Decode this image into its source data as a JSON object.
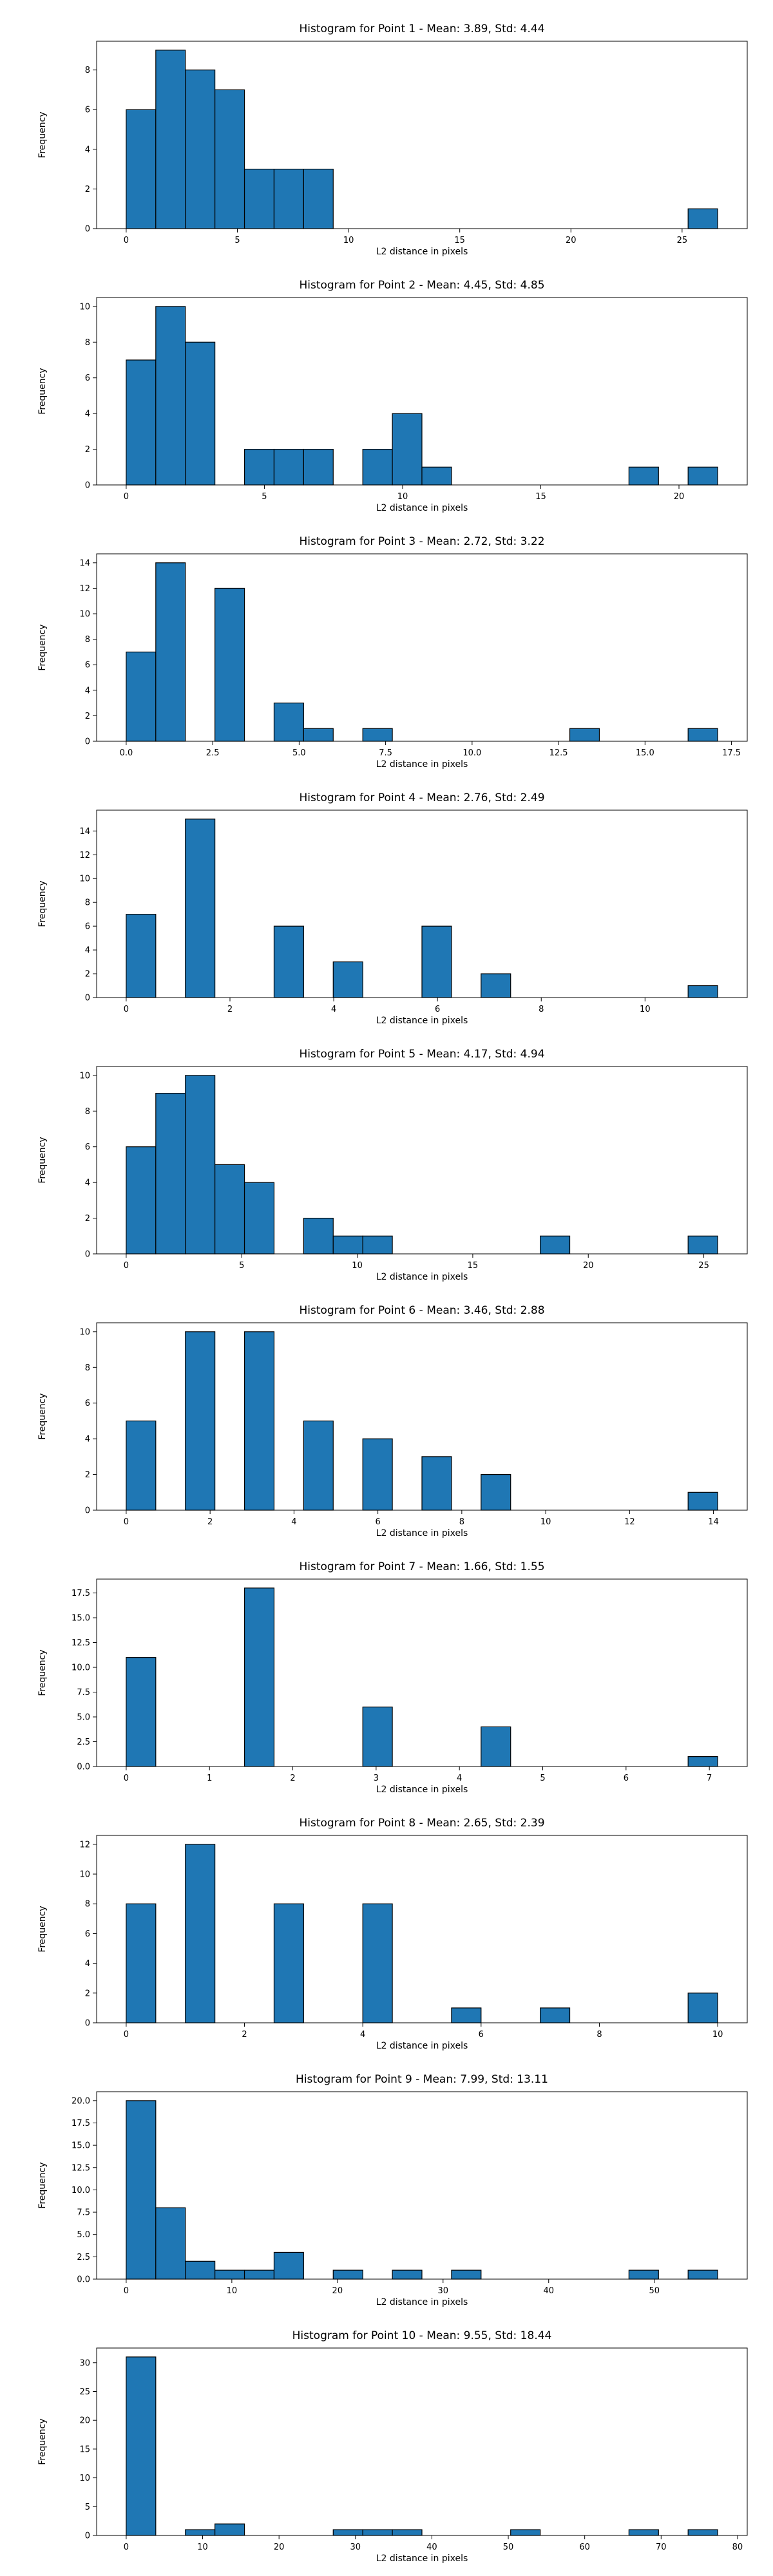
{
  "style": {
    "bar_color": "#1f77b4",
    "bar_edge_color": "#000000",
    "background": "#ffffff"
  },
  "chart_data": [
    {
      "type": "bar",
      "title": "Histogram for Point 1 - Mean: 3.89, Std: 4.44",
      "xlabel": "L2 distance in pixels",
      "ylabel": "Frequency",
      "bin_edges": [
        0.0,
        1.33,
        2.66,
        3.99,
        5.32,
        6.65,
        7.98,
        9.31,
        10.64,
        11.97,
        13.3,
        14.63,
        15.96,
        17.29,
        18.62,
        19.95,
        21.28,
        22.61,
        23.94,
        25.27,
        26.6
      ],
      "values": [
        6,
        9,
        8,
        7,
        3,
        3,
        3,
        0,
        0,
        0,
        0,
        0,
        0,
        0,
        0,
        0,
        0,
        0,
        0,
        1
      ],
      "xlim": [
        -1.33,
        27.93
      ],
      "ylim": [
        0,
        9.45
      ],
      "xticks": [
        0,
        5,
        10,
        15,
        20,
        25
      ],
      "xtick_labels": [
        "0",
        "5",
        "10",
        "15",
        "20",
        "25"
      ],
      "yticks": [
        0,
        2,
        4,
        6,
        8
      ],
      "ytick_labels": [
        "0",
        "2",
        "4",
        "6",
        "8"
      ],
      "grid": false
    },
    {
      "type": "bar",
      "title": "Histogram for Point 2 - Mean: 4.45, Std: 4.85",
      "xlabel": "L2 distance in pixels",
      "ylabel": "Frequency",
      "bin_edges": [
        0.0,
        1.07,
        2.14,
        3.21,
        4.28,
        5.35,
        6.42,
        7.49,
        8.56,
        9.63,
        10.7,
        11.77,
        12.84,
        13.91,
        14.98,
        16.05,
        17.12,
        18.19,
        19.26,
        20.33,
        21.4
      ],
      "values": [
        7,
        10,
        8,
        0,
        2,
        2,
        2,
        0,
        2,
        4,
        1,
        0,
        0,
        0,
        0,
        0,
        0,
        1,
        0,
        1
      ],
      "xlim": [
        -1.07,
        22.47
      ],
      "ylim": [
        0,
        10.5
      ],
      "xticks": [
        0,
        5,
        10,
        15,
        20
      ],
      "xtick_labels": [
        "0",
        "5",
        "10",
        "15",
        "20"
      ],
      "yticks": [
        0,
        2,
        4,
        6,
        8,
        10
      ],
      "ytick_labels": [
        "0",
        "2",
        "4",
        "6",
        "8",
        "10"
      ],
      "grid": false
    },
    {
      "type": "bar",
      "title": "Histogram for Point 3 - Mean: 2.72, Std: 3.22",
      "xlabel": "L2 distance in pixels",
      "ylabel": "Frequency",
      "bin_edges": [
        0.0,
        0.855,
        1.71,
        2.565,
        3.42,
        4.275,
        5.13,
        5.985,
        6.84,
        7.695,
        8.55,
        9.405,
        10.26,
        11.115,
        11.97,
        12.825,
        13.68,
        14.535,
        15.39,
        16.245,
        17.1
      ],
      "values": [
        7,
        14,
        0,
        12,
        0,
        3,
        1,
        0,
        1,
        0,
        0,
        0,
        0,
        0,
        0,
        1,
        0,
        0,
        0,
        1
      ],
      "xlim": [
        -0.855,
        17.955
      ],
      "ylim": [
        0,
        14.7
      ],
      "xticks": [
        0.0,
        2.5,
        5.0,
        7.5,
        10.0,
        12.5,
        15.0,
        17.5
      ],
      "xtick_labels": [
        "0.0",
        "2.5",
        "5.0",
        "7.5",
        "10.0",
        "12.5",
        "15.0",
        "17.5"
      ],
      "yticks": [
        0,
        2,
        4,
        6,
        8,
        10,
        12,
        14
      ],
      "ytick_labels": [
        "0",
        "2",
        "4",
        "6",
        "8",
        "10",
        "12",
        "14"
      ],
      "grid": false
    },
    {
      "type": "bar",
      "title": "Histogram for Point 4 - Mean: 2.76, Std: 2.49",
      "xlabel": "L2 distance in pixels",
      "ylabel": "Frequency",
      "bin_edges": [
        0.0,
        0.57,
        1.14,
        1.71,
        2.28,
        2.85,
        3.42,
        3.99,
        4.56,
        5.13,
        5.7,
        6.27,
        6.84,
        7.41,
        7.98,
        8.55,
        9.12,
        9.69,
        10.26,
        10.83,
        11.4
      ],
      "values": [
        7,
        0,
        15,
        0,
        0,
        6,
        0,
        3,
        0,
        0,
        6,
        0,
        2,
        0,
        0,
        0,
        0,
        0,
        0,
        1
      ],
      "xlim": [
        -0.57,
        11.97
      ],
      "ylim": [
        0,
        15.75
      ],
      "xticks": [
        0,
        2,
        4,
        6,
        8,
        10
      ],
      "xtick_labels": [
        "0",
        "2",
        "4",
        "6",
        "8",
        "10"
      ],
      "yticks": [
        0,
        2,
        4,
        6,
        8,
        10,
        12,
        14
      ],
      "ytick_labels": [
        "0",
        "2",
        "4",
        "6",
        "8",
        "10",
        "12",
        "14"
      ],
      "grid": false
    },
    {
      "type": "bar",
      "title": "Histogram for Point 5 - Mean: 4.17, Std: 4.94",
      "xlabel": "L2 distance in pixels",
      "ylabel": "Frequency",
      "bin_edges": [
        0.0,
        1.28,
        2.56,
        3.84,
        5.12,
        6.4,
        7.68,
        8.96,
        10.24,
        11.52,
        12.8,
        14.08,
        15.36,
        16.64,
        17.92,
        19.2,
        20.48,
        21.76,
        23.04,
        24.32,
        25.6
      ],
      "values": [
        6,
        9,
        10,
        5,
        4,
        0,
        2,
        1,
        1,
        0,
        0,
        0,
        0,
        0,
        1,
        0,
        0,
        0,
        0,
        1
      ],
      "xlim": [
        -1.28,
        26.88
      ],
      "ylim": [
        0,
        10.5
      ],
      "xticks": [
        0,
        5,
        10,
        15,
        20,
        25
      ],
      "xtick_labels": [
        "0",
        "5",
        "10",
        "15",
        "20",
        "25"
      ],
      "yticks": [
        0,
        2,
        4,
        6,
        8,
        10
      ],
      "ytick_labels": [
        "0",
        "2",
        "4",
        "6",
        "8",
        "10"
      ],
      "grid": false
    },
    {
      "type": "bar",
      "title": "Histogram for Point 6 - Mean: 3.46, Std: 2.88",
      "xlabel": "L2 distance in pixels",
      "ylabel": "Frequency",
      "bin_edges": [
        0.0,
        0.705,
        1.41,
        2.115,
        2.82,
        3.525,
        4.23,
        4.935,
        5.64,
        6.345,
        7.05,
        7.755,
        8.46,
        9.165,
        9.87,
        10.575,
        11.28,
        11.985,
        12.69,
        13.395,
        14.1
      ],
      "values": [
        5,
        0,
        10,
        0,
        10,
        0,
        5,
        0,
        4,
        0,
        3,
        0,
        2,
        0,
        0,
        0,
        0,
        0,
        0,
        1
      ],
      "xlim": [
        -0.705,
        14.805
      ],
      "ylim": [
        0,
        10.5
      ],
      "xticks": [
        0,
        2,
        4,
        6,
        8,
        10,
        12,
        14
      ],
      "xtick_labels": [
        "0",
        "2",
        "4",
        "6",
        "8",
        "10",
        "12",
        "14"
      ],
      "yticks": [
        0,
        2,
        4,
        6,
        8,
        10
      ],
      "ytick_labels": [
        "0",
        "2",
        "4",
        "6",
        "8",
        "10"
      ],
      "grid": false
    },
    {
      "type": "bar",
      "title": "Histogram for Point 7 - Mean: 1.66, Std: 1.55",
      "xlabel": "L2 distance in pixels",
      "ylabel": "Frequency",
      "bin_edges": [
        0.0,
        0.355,
        0.71,
        1.065,
        1.42,
        1.775,
        2.13,
        2.485,
        2.84,
        3.195,
        3.55,
        3.905,
        4.26,
        4.615,
        4.97,
        5.325,
        5.68,
        6.035,
        6.39,
        6.745,
        7.1
      ],
      "values": [
        11,
        0,
        0,
        0,
        18,
        0,
        0,
        0,
        6,
        0,
        0,
        0,
        4,
        0,
        0,
        0,
        0,
        0,
        0,
        1
      ],
      "xlim": [
        -0.355,
        7.455
      ],
      "ylim": [
        0,
        18.9
      ],
      "xticks": [
        0,
        1,
        2,
        3,
        4,
        5,
        6,
        7
      ],
      "xtick_labels": [
        "0",
        "1",
        "2",
        "3",
        "4",
        "5",
        "6",
        "7"
      ],
      "yticks": [
        0,
        2.5,
        5,
        7.5,
        10,
        12.5,
        15,
        17.5
      ],
      "ytick_labels": [
        "0.0",
        "2.5",
        "5.0",
        "7.5",
        "10.0",
        "12.5",
        "15.0",
        "17.5"
      ],
      "grid": false
    },
    {
      "type": "bar",
      "title": "Histogram for Point 8 - Mean: 2.65, Std: 2.39",
      "xlabel": "L2 distance in pixels",
      "ylabel": "Frequency",
      "bin_edges": [
        0.0,
        0.5,
        1.0,
        1.5,
        2.0,
        2.5,
        3.0,
        3.5,
        4.0,
        4.5,
        5.0,
        5.5,
        6.0,
        6.5,
        7.0,
        7.5,
        8.0,
        8.5,
        9.0,
        9.5,
        10.0
      ],
      "values": [
        8,
        0,
        12,
        0,
        0,
        8,
        0,
        0,
        8,
        0,
        0,
        1,
        0,
        0,
        1,
        0,
        0,
        0,
        0,
        2
      ],
      "xlim": [
        -0.5,
        10.5
      ],
      "ylim": [
        0,
        12.6
      ],
      "xticks": [
        0,
        2,
        4,
        6,
        8,
        10
      ],
      "xtick_labels": [
        "0",
        "2",
        "4",
        "6",
        "8",
        "10"
      ],
      "yticks": [
        0,
        2,
        4,
        6,
        8,
        10,
        12
      ],
      "ytick_labels": [
        "0",
        "2",
        "4",
        "6",
        "8",
        "10",
        "12"
      ],
      "grid": false
    },
    {
      "type": "bar",
      "title": "Histogram for Point 9 - Mean: 7.99, Std: 13.11",
      "xlabel": "L2 distance in pixels",
      "ylabel": "Frequency",
      "bin_edges": [
        0.0,
        2.8,
        5.6,
        8.4,
        11.2,
        14.0,
        16.8,
        19.6,
        22.4,
        25.2,
        28.0,
        30.8,
        33.6,
        36.4,
        39.2,
        42.0,
        44.8,
        47.6,
        50.4,
        53.2,
        56.0
      ],
      "values": [
        20,
        8,
        2,
        1,
        1,
        3,
        0,
        1,
        0,
        1,
        0,
        1,
        0,
        0,
        0,
        0,
        0,
        1,
        0,
        1
      ],
      "xlim": [
        -2.8,
        58.8
      ],
      "ylim": [
        0,
        21.0
      ],
      "xticks": [
        0,
        10,
        20,
        30,
        40,
        50
      ],
      "xtick_labels": [
        "0",
        "10",
        "20",
        "30",
        "40",
        "50"
      ],
      "yticks": [
        0,
        2.5,
        5,
        7.5,
        10,
        12.5,
        15,
        17.5,
        20
      ],
      "ytick_labels": [
        "0.0",
        "2.5",
        "5.0",
        "7.5",
        "10.0",
        "12.5",
        "15.0",
        "17.5",
        "20.0"
      ],
      "grid": false
    },
    {
      "type": "bar",
      "title": "Histogram for Point 10 - Mean: 9.55, Std: 18.44",
      "xlabel": "L2 distance in pixels",
      "ylabel": "Frequency",
      "bin_edges": [
        0.0,
        3.87,
        7.74,
        11.61,
        15.48,
        19.35,
        23.22,
        27.09,
        30.96,
        34.83,
        38.7,
        42.57,
        46.44,
        50.31,
        54.18,
        58.05,
        61.92,
        65.79,
        69.66,
        73.53,
        77.4
      ],
      "values": [
        31,
        0,
        1,
        2,
        0,
        0,
        0,
        1,
        1,
        1,
        0,
        0,
        0,
        1,
        0,
        0,
        0,
        1,
        0,
        1
      ],
      "xlim": [
        -3.87,
        81.27
      ],
      "ylim": [
        0,
        32.55
      ],
      "xticks": [
        0,
        10,
        20,
        30,
        40,
        50,
        60,
        70,
        80
      ],
      "xtick_labels": [
        "0",
        "10",
        "20",
        "30",
        "40",
        "50",
        "60",
        "70",
        "80"
      ],
      "yticks": [
        0,
        5,
        10,
        15,
        20,
        25,
        30
      ],
      "ytick_labels": [
        "0",
        "5",
        "10",
        "15",
        "20",
        "25",
        "30"
      ],
      "grid": false
    }
  ]
}
